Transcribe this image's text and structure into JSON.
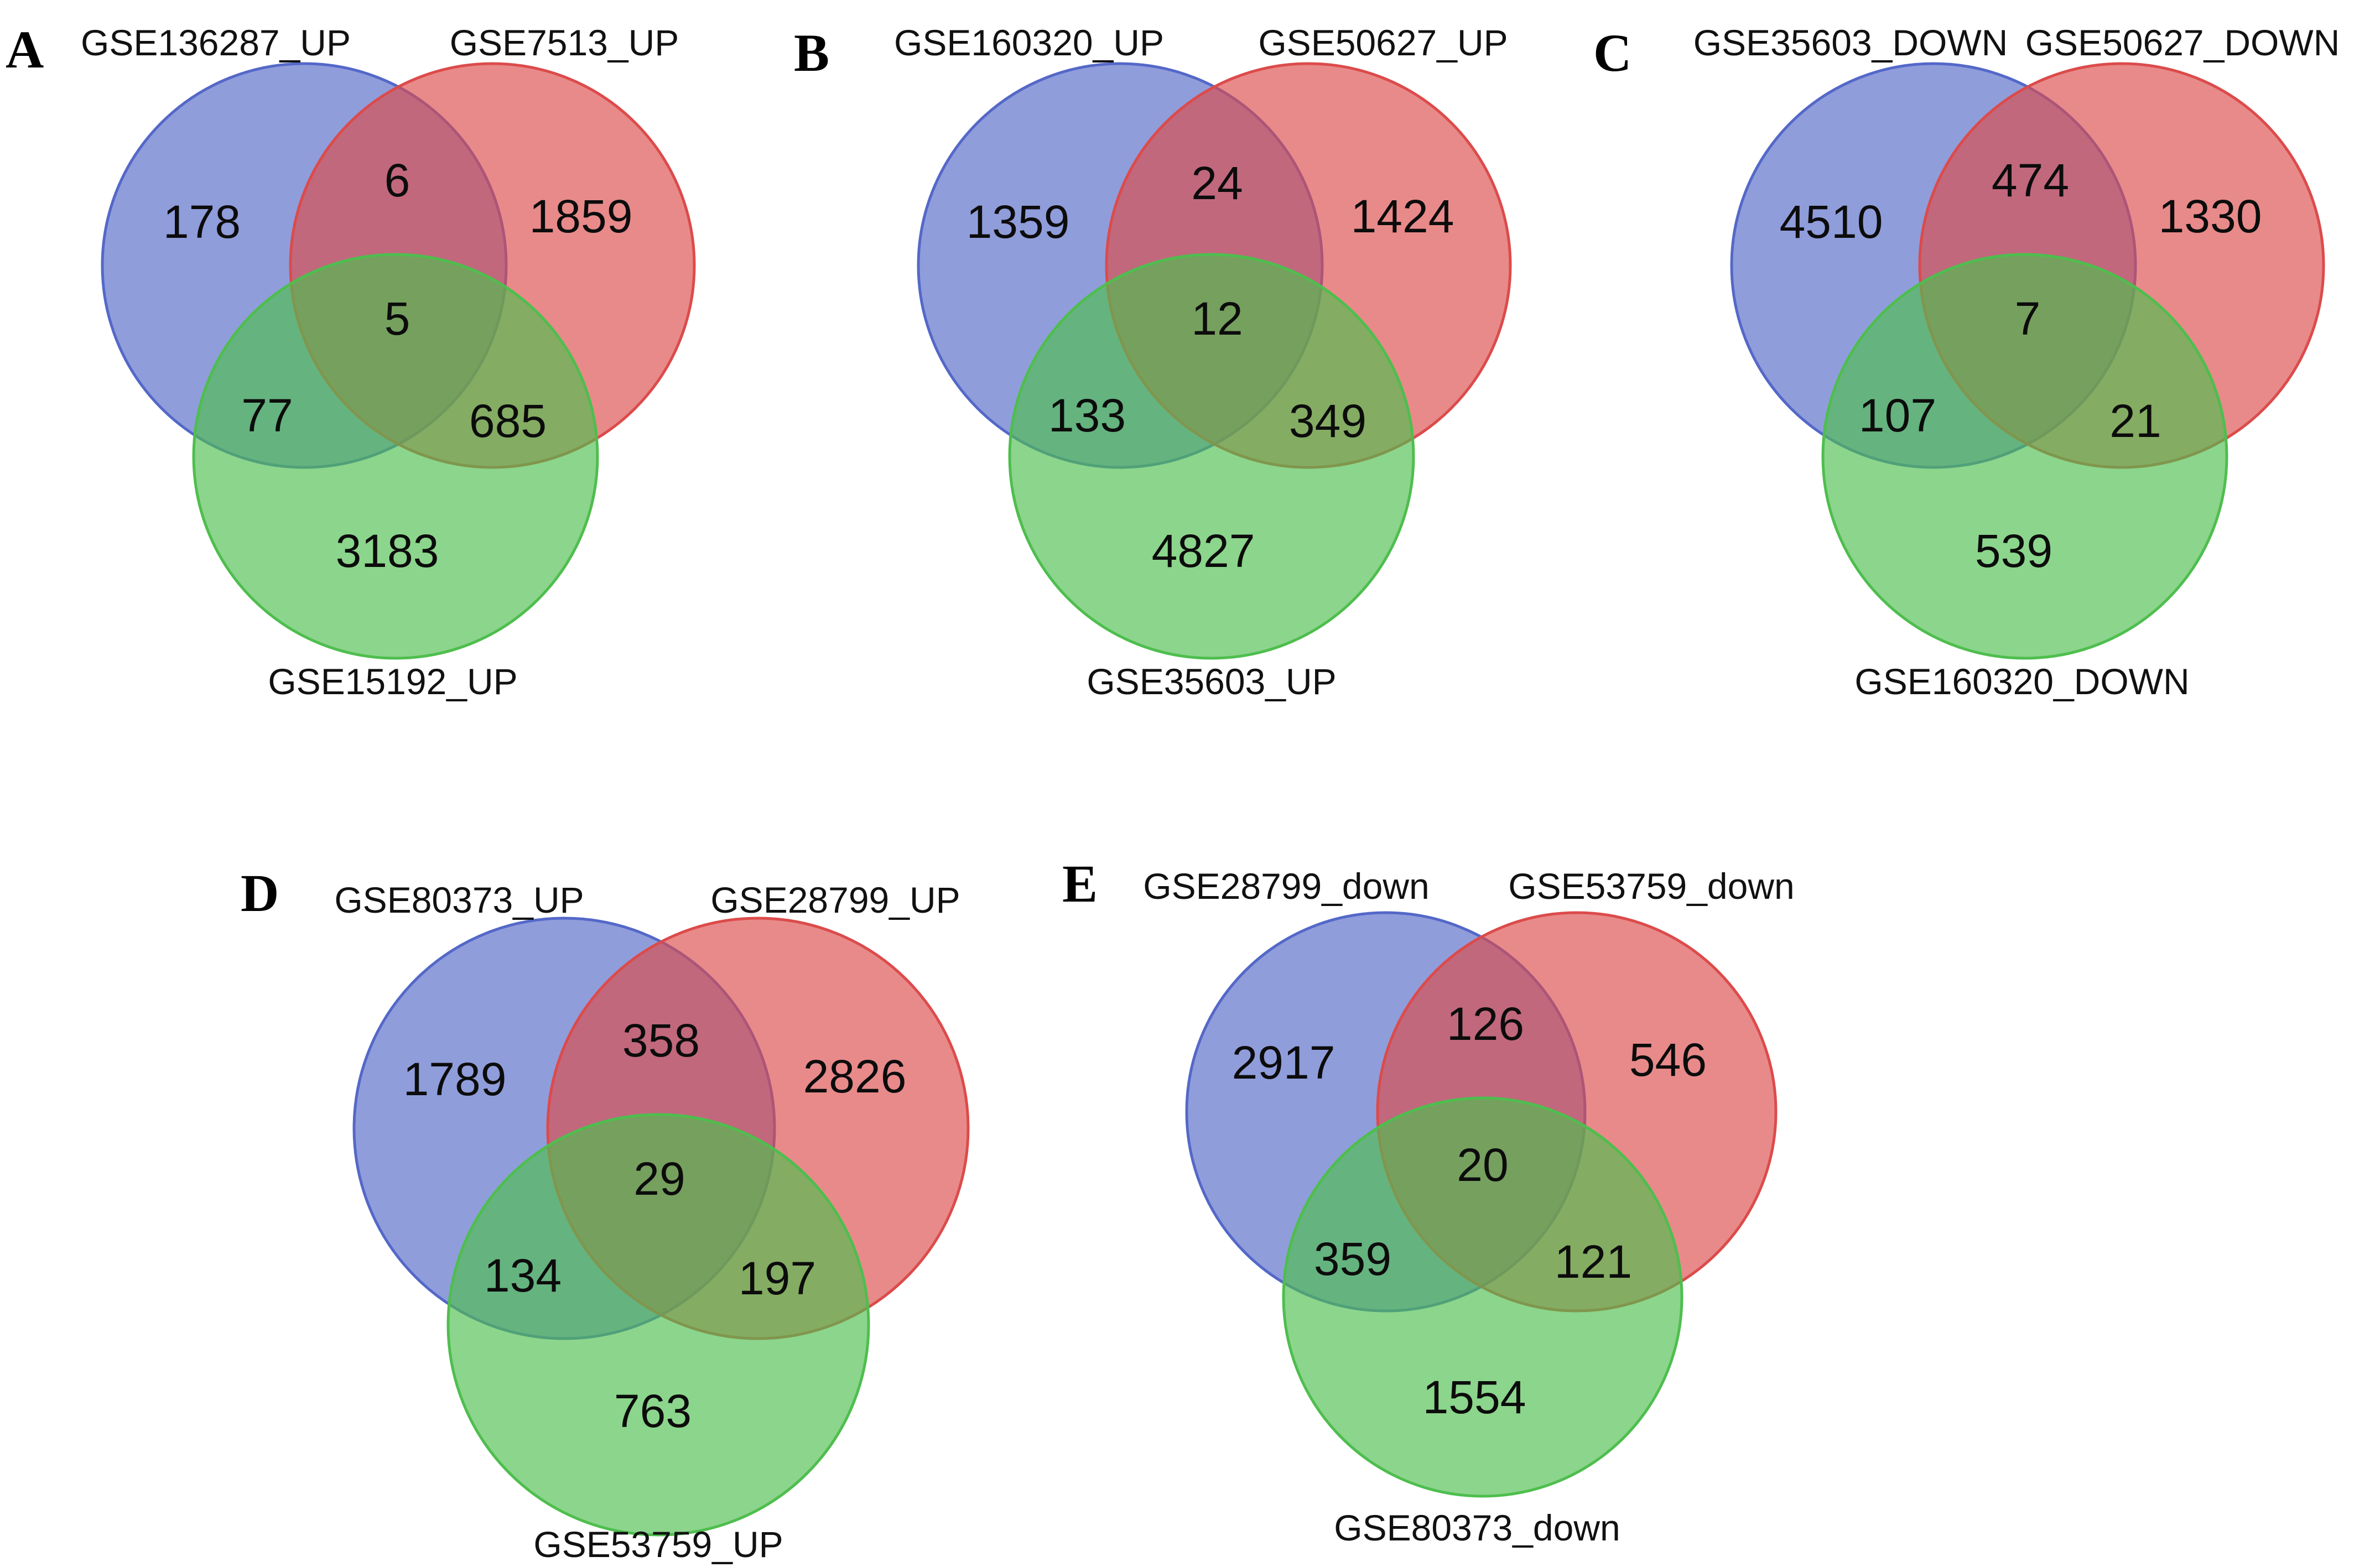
{
  "colors": {
    "set_a": "#5468C8",
    "set_b": "#DC4B4B",
    "set_c": "#4EBE4E",
    "text": "#111111"
  },
  "panels": [
    {
      "letter": "A",
      "sets": [
        "GSE136287_UP",
        "GSE7513_UP",
        "GSE15192_UP"
      ],
      "counts": {
        "a": "178",
        "b": "1859",
        "c": "3183",
        "ab": "6",
        "ac": "77",
        "bc": "685",
        "abc": "5"
      }
    },
    {
      "letter": "B",
      "sets": [
        "GSE160320_UP",
        "GSE50627_UP",
        "GSE35603_UP"
      ],
      "counts": {
        "a": "1359",
        "b": "1424",
        "c": "4827",
        "ab": "24",
        "ac": "133",
        "bc": "349",
        "abc": "12"
      }
    },
    {
      "letter": "C",
      "sets": [
        "GSE35603_DOWN",
        "GSE50627_DOWN",
        "GSE160320_DOWN"
      ],
      "counts": {
        "a": "4510",
        "b": "1330",
        "c": "539",
        "ab": "474",
        "ac": "107",
        "bc": "21",
        "abc": "7"
      }
    },
    {
      "letter": "D",
      "sets": [
        "GSE80373_UP",
        "GSE28799_UP",
        "GSE53759_UP"
      ],
      "counts": {
        "a": "1789",
        "b": "2826",
        "c": "763",
        "ab": "358",
        "ac": "134",
        "bc": "197",
        "abc": "29"
      }
    },
    {
      "letter": "E",
      "sets": [
        "GSE28799_down",
        "GSE53759_down",
        "GSE80373_down"
      ],
      "counts": {
        "a": "2917",
        "b": "546",
        "c": "1554",
        "ab": "126",
        "ac": "359",
        "bc": "121",
        "abc": "20"
      }
    }
  ]
}
